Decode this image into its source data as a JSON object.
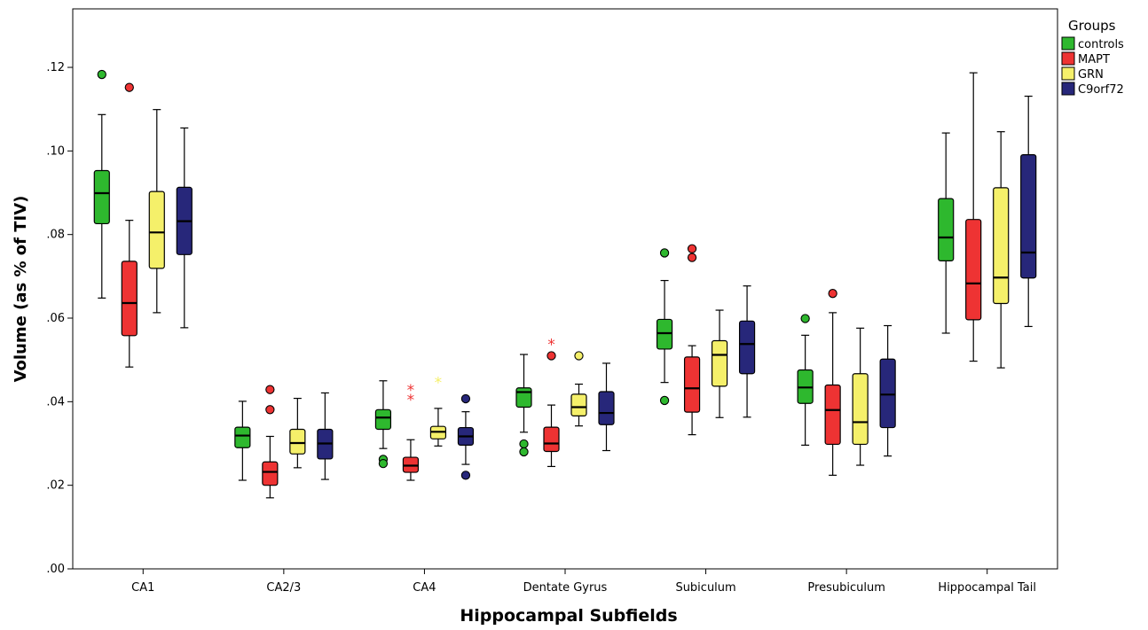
{
  "chart_data": {
    "type": "boxplot",
    "xlabel": "Hippocampal Subfields",
    "ylabel": "Volume (as % of TIV)",
    "ylim": [
      0,
      0.134
    ],
    "yticks": [
      {
        "value": 0.0,
        "label": ".00"
      },
      {
        "value": 0.02,
        "label": ".02"
      },
      {
        "value": 0.04,
        "label": ".04"
      },
      {
        "value": 0.06,
        "label": ".06"
      },
      {
        "value": 0.08,
        "label": ".08"
      },
      {
        "value": 0.1,
        "label": ".10"
      },
      {
        "value": 0.12,
        "label": ".12"
      }
    ],
    "categories": [
      "CA1",
      "CA2/3",
      "CA4",
      "Dentate Gyrus",
      "Subiculum",
      "Presubiculum",
      "Hippocampal Tail"
    ],
    "legend": {
      "title": "Groups",
      "position": "top-right"
    },
    "series": [
      {
        "name": "controls",
        "color": "#2eb82e",
        "boxes": [
          {
            "min": 0.0648,
            "q1": 0.0826,
            "median": 0.0899,
            "q3": 0.0953,
            "max": 0.1087,
            "outliers": [
              0.1183
            ],
            "extremes": []
          },
          {
            "min": 0.0212,
            "q1": 0.029,
            "median": 0.0319,
            "q3": 0.0339,
            "max": 0.0401,
            "outliers": [],
            "extremes": []
          },
          {
            "min": 0.0288,
            "q1": 0.0334,
            "median": 0.0362,
            "q3": 0.0381,
            "max": 0.045,
            "outliers": [
              0.0262,
              0.0252
            ],
            "extremes": []
          },
          {
            "min": 0.0327,
            "q1": 0.0387,
            "median": 0.0423,
            "q3": 0.0433,
            "max": 0.0513,
            "outliers": [
              0.0299,
              0.028
            ],
            "extremes": []
          },
          {
            "min": 0.0446,
            "q1": 0.0526,
            "median": 0.0564,
            "q3": 0.0597,
            "max": 0.069,
            "outliers": [
              0.0756,
              0.0403
            ],
            "extremes": []
          },
          {
            "min": 0.0296,
            "q1": 0.0396,
            "median": 0.0434,
            "q3": 0.0476,
            "max": 0.0559,
            "outliers": [
              0.0599
            ],
            "extremes": []
          },
          {
            "min": 0.0564,
            "q1": 0.0737,
            "median": 0.0793,
            "q3": 0.0886,
            "max": 0.1043,
            "outliers": [],
            "extremes": []
          }
        ]
      },
      {
        "name": "MAPT",
        "color": "#ee3333",
        "boxes": [
          {
            "min": 0.0483,
            "q1": 0.0558,
            "median": 0.0636,
            "q3": 0.0736,
            "max": 0.0834,
            "outliers": [
              0.1152
            ],
            "extremes": []
          },
          {
            "min": 0.017,
            "q1": 0.02,
            "median": 0.0232,
            "q3": 0.0256,
            "max": 0.0317,
            "outliers": [
              0.0429,
              0.0381
            ],
            "extremes": []
          },
          {
            "min": 0.0212,
            "q1": 0.0231,
            "median": 0.0247,
            "q3": 0.0267,
            "max": 0.0309,
            "outliers": [],
            "extremes": [
              0.0428,
              0.0405
            ]
          },
          {
            "min": 0.0245,
            "q1": 0.0281,
            "median": 0.03,
            "q3": 0.0339,
            "max": 0.0392,
            "outliers": [
              0.051
            ],
            "extremes": [
              0.0537
            ]
          },
          {
            "min": 0.0321,
            "q1": 0.0375,
            "median": 0.0432,
            "q3": 0.0507,
            "max": 0.0534,
            "outliers": [
              0.0766,
              0.0745
            ],
            "extremes": []
          },
          {
            "min": 0.0224,
            "q1": 0.0298,
            "median": 0.038,
            "q3": 0.044,
            "max": 0.0613,
            "outliers": [
              0.0659
            ],
            "extremes": []
          },
          {
            "min": 0.0497,
            "q1": 0.0596,
            "median": 0.0683,
            "q3": 0.0836,
            "max": 0.1187,
            "outliers": [],
            "extremes": []
          }
        ]
      },
      {
        "name": "GRN",
        "color": "#f5f06a",
        "boxes": [
          {
            "min": 0.0613,
            "q1": 0.0719,
            "median": 0.0805,
            "q3": 0.0903,
            "max": 0.1099,
            "outliers": [],
            "extremes": []
          },
          {
            "min": 0.0242,
            "q1": 0.0275,
            "median": 0.0301,
            "q3": 0.0334,
            "max": 0.0408,
            "outliers": [],
            "extremes": []
          },
          {
            "min": 0.0294,
            "q1": 0.0311,
            "median": 0.0328,
            "q3": 0.0341,
            "max": 0.0384,
            "outliers": [],
            "extremes": [
              0.0446
            ]
          },
          {
            "min": 0.0342,
            "q1": 0.0366,
            "median": 0.0387,
            "q3": 0.0418,
            "max": 0.0442,
            "outliers": [
              0.051
            ],
            "extremes": []
          },
          {
            "min": 0.0362,
            "q1": 0.0437,
            "median": 0.0512,
            "q3": 0.0546,
            "max": 0.0619,
            "outliers": [],
            "extremes": []
          },
          {
            "min": 0.0248,
            "q1": 0.0298,
            "median": 0.0351,
            "q3": 0.0467,
            "max": 0.0576,
            "outliers": [],
            "extremes": []
          },
          {
            "min": 0.0481,
            "q1": 0.0635,
            "median": 0.0697,
            "q3": 0.0912,
            "max": 0.1046,
            "outliers": [],
            "extremes": []
          }
        ]
      },
      {
        "name": "C9orf72",
        "color": "#27277a",
        "boxes": [
          {
            "min": 0.0577,
            "q1": 0.0752,
            "median": 0.0832,
            "q3": 0.0913,
            "max": 0.1055,
            "outliers": [],
            "extremes": []
          },
          {
            "min": 0.0214,
            "q1": 0.0263,
            "median": 0.03,
            "q3": 0.0334,
            "max": 0.0421,
            "outliers": [],
            "extremes": []
          },
          {
            "min": 0.025,
            "q1": 0.0296,
            "median": 0.0317,
            "q3": 0.0338,
            "max": 0.0376,
            "outliers": [
              0.0407,
              0.0224
            ],
            "extremes": []
          },
          {
            "min": 0.0283,
            "q1": 0.0345,
            "median": 0.0373,
            "q3": 0.0424,
            "max": 0.0492,
            "outliers": [],
            "extremes": []
          },
          {
            "min": 0.0363,
            "q1": 0.0467,
            "median": 0.0538,
            "q3": 0.0593,
            "max": 0.0677,
            "outliers": [],
            "extremes": []
          },
          {
            "min": 0.027,
            "q1": 0.0338,
            "median": 0.0417,
            "q3": 0.0502,
            "max": 0.0582,
            "outliers": [],
            "extremes": []
          },
          {
            "min": 0.058,
            "q1": 0.0696,
            "median": 0.0757,
            "q3": 0.0991,
            "max": 0.1131,
            "outliers": [],
            "extremes": []
          }
        ]
      }
    ]
  }
}
